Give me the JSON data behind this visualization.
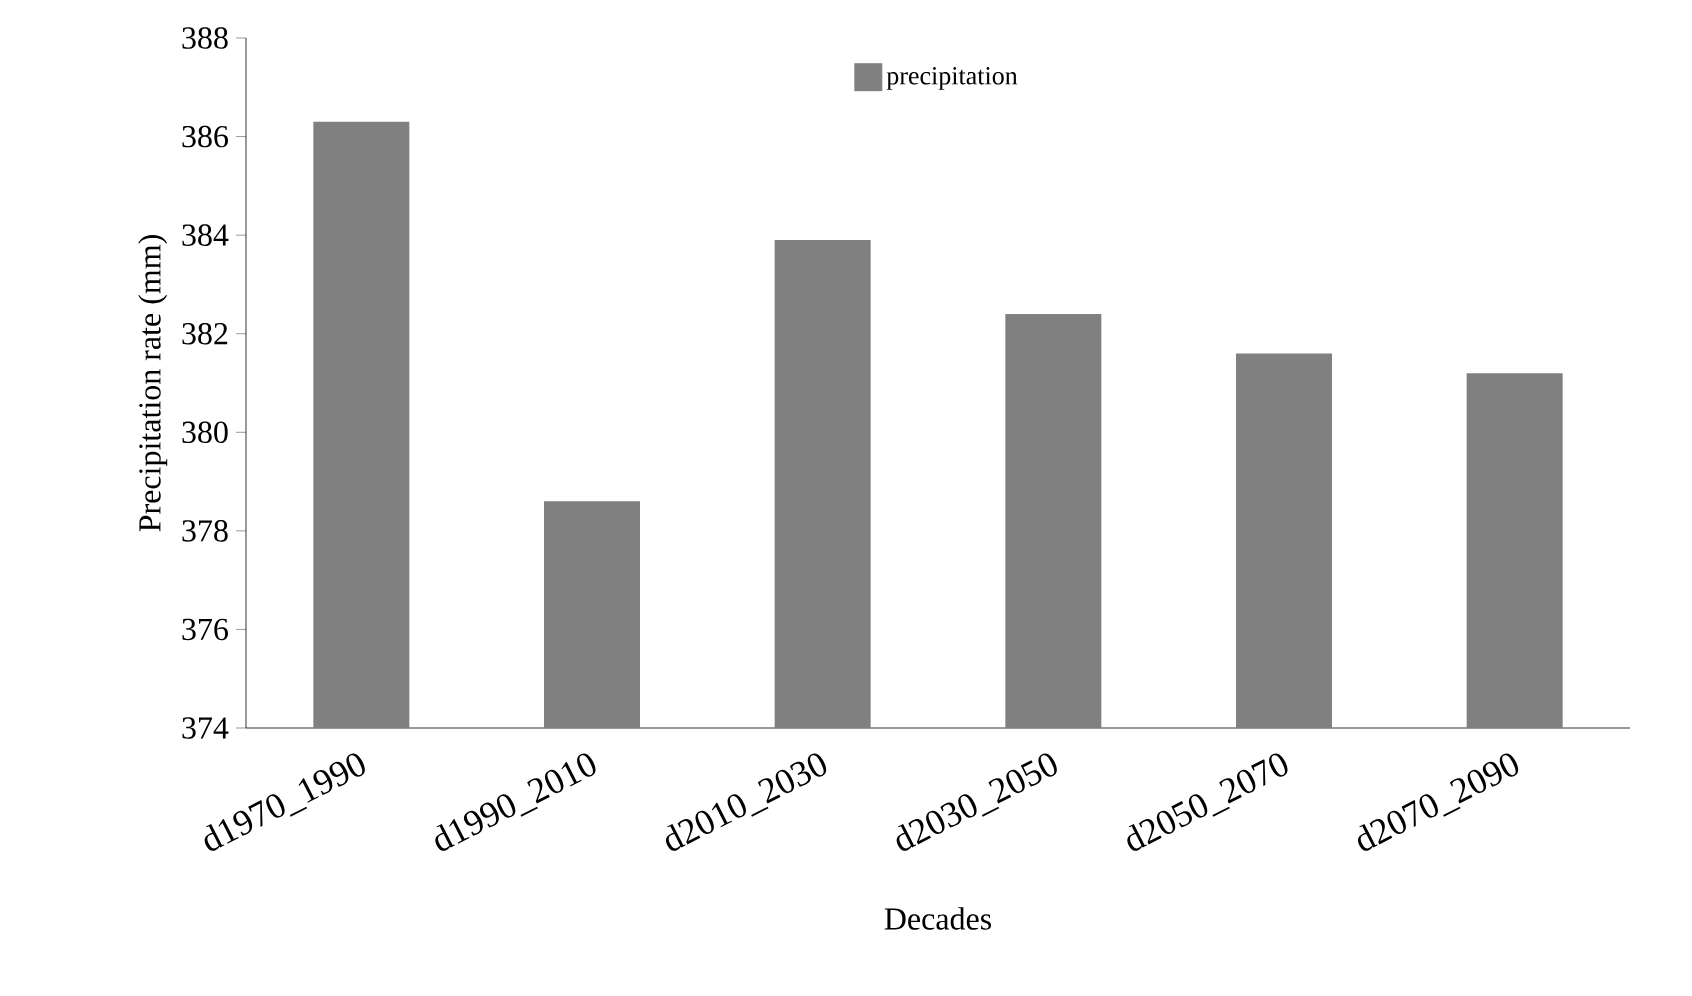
{
  "chart_data": {
    "type": "bar",
    "xlabel": "Decades",
    "ylabel": "Precipitation rate (mm)",
    "categories": [
      "d1970_1990",
      "d1990_2010",
      "d2010_2030",
      "d2030_2050",
      "d2050_2070",
      "d2070_2090"
    ],
    "series": [
      {
        "name": "precipitation",
        "color": "#808080",
        "values": [
          386.3,
          378.6,
          383.9,
          382.4,
          381.6,
          381.2
        ]
      }
    ],
    "ylim": [
      374,
      388
    ],
    "yticks": [
      374,
      376,
      378,
      380,
      382,
      384,
      386,
      388
    ],
    "grid": false,
    "legend": "top"
  }
}
